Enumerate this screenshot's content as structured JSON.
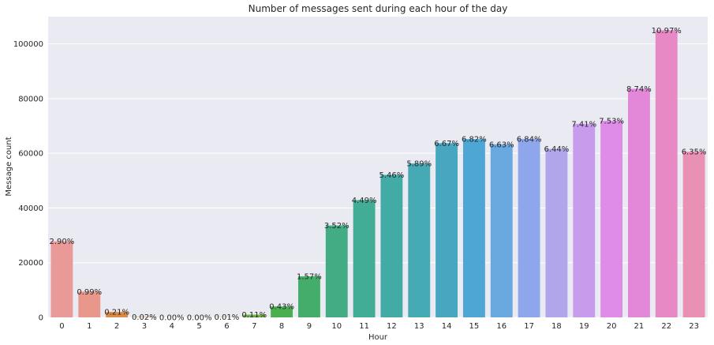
{
  "chart_data": {
    "type": "bar",
    "title": "Number of messages sent during each hour of the day",
    "xlabel": "Hour",
    "ylabel": "Message count",
    "ylim": [
      0,
      110000
    ],
    "yticks": [
      0,
      20000,
      40000,
      60000,
      80000,
      100000
    ],
    "grid": true,
    "categories": [
      "0",
      "1",
      "2",
      "3",
      "4",
      "5",
      "6",
      "7",
      "8",
      "9",
      "10",
      "11",
      "12",
      "13",
      "14",
      "15",
      "16",
      "17",
      "18",
      "19",
      "20",
      "21",
      "22",
      "23"
    ],
    "values": [
      27800,
      9400,
      2000,
      150,
      20,
      20,
      80,
      1000,
      4000,
      15000,
      33600,
      42900,
      52100,
      56300,
      63700,
      65200,
      63300,
      65300,
      61600,
      70800,
      71900,
      83600,
      105000,
      60600
    ],
    "labels": [
      "2.90%",
      "0.99%",
      "0.21%",
      "0.02%",
      "0.00%",
      "0.00%",
      "0.01%",
      "0.11%",
      "0.43%",
      "1.57%",
      "3.52%",
      "4.49%",
      "5.46%",
      "5.89%",
      "6.67%",
      "6.82%",
      "6.63%",
      "6.84%",
      "6.44%",
      "7.41%",
      "7.53%",
      "8.74%",
      "10.97%",
      "6.35%"
    ],
    "colors": [
      "#ea9999",
      "#e8978a",
      "#da8b46",
      "#c99a3f",
      "#b3a43c",
      "#a3aa3d",
      "#8db23c",
      "#6db341",
      "#4caf4f",
      "#45ad6b",
      "#42ad85",
      "#42ad97",
      "#43aba6",
      "#45aab3",
      "#47a7c0",
      "#4ea6d4",
      "#6aa8e0",
      "#8ea6eb",
      "#b1a6ec",
      "#c99bed",
      "#de8ce8",
      "#e388d8",
      "#e689c5",
      "#e991b4"
    ],
    "background": "#eaeaf2"
  }
}
